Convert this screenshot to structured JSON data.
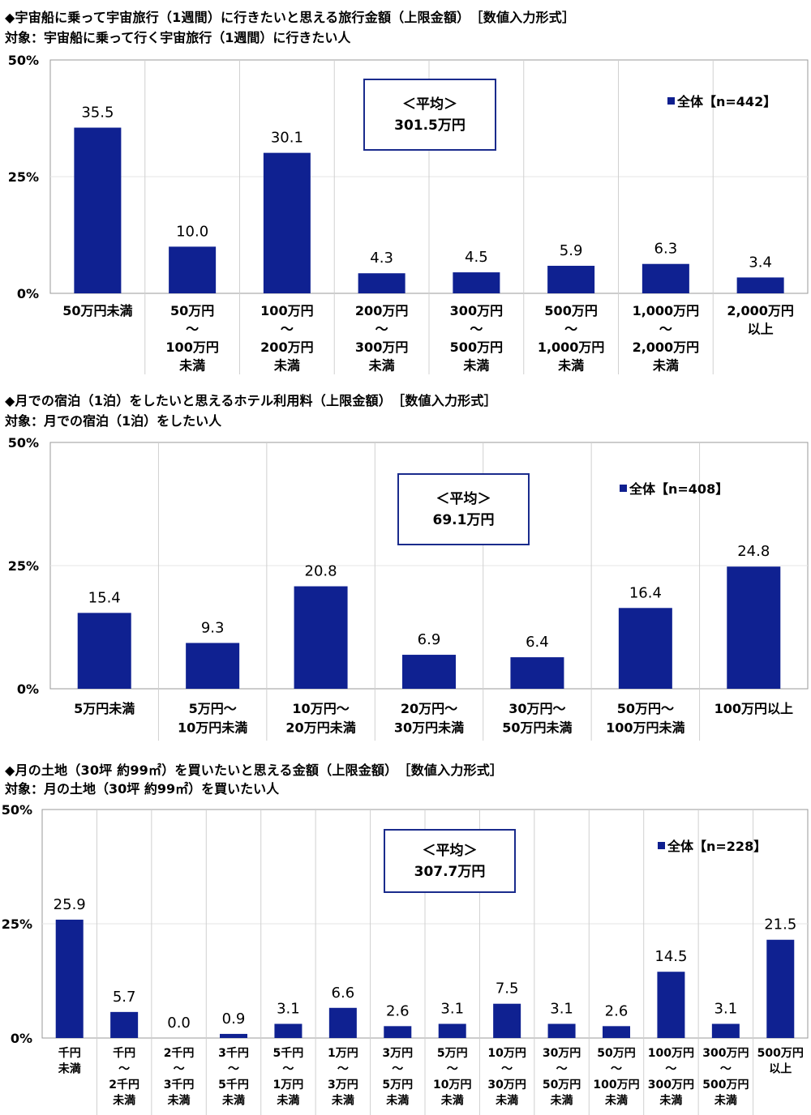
{
  "colors": {
    "bar": "#0f2191",
    "grid": "#d0d0d0",
    "axis": "#999999",
    "box_border": "#1a2b8c"
  },
  "charts": [
    {
      "title": "◆宇宙船に乗って宇宙旅行（1週間）に行きたいと思える旅行金額（上限金額）　［数値入力形式］",
      "subtitle": "対象：宇宙船に乗って行く宇宙旅行（1週間）に行きたい人",
      "avg_label": "＜平均＞",
      "avg_value": "301.5万円",
      "legend": "全体【n=442】"
    },
    {
      "title": "◆月での宿泊（1泊）をしたいと思えるホテル利用料（上限金額）　［数値入力形式］",
      "subtitle": "対象：月での宿泊（1泊）をしたい人",
      "avg_label": "＜平均＞",
      "avg_value": "69.1万円",
      "legend": "全体【n=408】"
    },
    {
      "title": "◆月の土地（30坪 約99㎡）を買いたいと思える金額（上限金額）　［数値入力形式］",
      "subtitle": "対象：月の土地（30坪 約99㎡）を買いたい人",
      "avg_label": "＜平均＞",
      "avg_value": "307.7万円",
      "legend": "全体【n=228】"
    }
  ],
  "chart_data": [
    {
      "type": "bar",
      "y_ticks": [
        "50%",
        "25%",
        "0%"
      ],
      "ylim": [
        0,
        50
      ],
      "categories": [
        [
          "50万円未満"
        ],
        [
          "50万円",
          "～",
          "100万円",
          "未満"
        ],
        [
          "100万円",
          "～",
          "200万円",
          "未満"
        ],
        [
          "200万円",
          "～",
          "300万円",
          "未満"
        ],
        [
          "300万円",
          "～",
          "500万円",
          "未満"
        ],
        [
          "500万円",
          "～",
          "1,000万円",
          "未満"
        ],
        [
          "1,000万円",
          "～",
          "2,000万円",
          "未満"
        ],
        [
          "2,000万円",
          "以上"
        ]
      ],
      "values": [
        35.5,
        10.0,
        30.1,
        4.3,
        4.5,
        5.9,
        6.3,
        3.4
      ],
      "value_labels": [
        "35.5",
        "10.0",
        "30.1",
        "4.3",
        "4.5",
        "5.9",
        "6.3",
        "3.4"
      ],
      "legend_position": "top-right"
    },
    {
      "type": "bar",
      "y_ticks": [
        "50%",
        "25%",
        "0%"
      ],
      "ylim": [
        0,
        50
      ],
      "categories": [
        [
          "5万円未満"
        ],
        [
          "5万円～",
          "10万円未満"
        ],
        [
          "10万円～",
          "20万円未満"
        ],
        [
          "20万円～",
          "30万円未満"
        ],
        [
          "30万円～",
          "50万円未満"
        ],
        [
          "50万円～",
          "100万円未満"
        ],
        [
          "100万円以上"
        ]
      ],
      "values": [
        15.4,
        9.3,
        20.8,
        6.9,
        6.4,
        16.4,
        24.8
      ],
      "value_labels": [
        "15.4",
        "9.3",
        "20.8",
        "6.9",
        "6.4",
        "16.4",
        "24.8"
      ],
      "legend_position": "top-right"
    },
    {
      "type": "bar",
      "y_ticks": [
        "50%",
        "25%",
        "0%"
      ],
      "ylim": [
        0,
        50
      ],
      "categories": [
        [
          "千円",
          "未満"
        ],
        [
          "千円",
          "～",
          "2千円",
          "未満"
        ],
        [
          "2千円",
          "～",
          "3千円",
          "未満"
        ],
        [
          "3千円",
          "～",
          "5千円",
          "未満"
        ],
        [
          "5千円",
          "～",
          "1万円",
          "未満"
        ],
        [
          "1万円",
          "～",
          "3万円",
          "未満"
        ],
        [
          "3万円",
          "～",
          "5万円",
          "未満"
        ],
        [
          "5万円",
          "～",
          "10万円",
          "未満"
        ],
        [
          "10万円",
          "～",
          "30万円",
          "未満"
        ],
        [
          "30万円",
          "～",
          "50万円",
          "未満"
        ],
        [
          "50万円",
          "～",
          "100万円",
          "未満"
        ],
        [
          "100万円",
          "～",
          "300万円",
          "未満"
        ],
        [
          "300万円",
          "～",
          "500万円",
          "未満"
        ],
        [
          "500万円",
          "以上"
        ]
      ],
      "values": [
        25.9,
        5.7,
        0.0,
        0.9,
        3.1,
        6.6,
        2.6,
        3.1,
        7.5,
        3.1,
        2.6,
        14.5,
        3.1,
        21.5
      ],
      "value_labels": [
        "25.9",
        "5.7",
        "0.0",
        "0.9",
        "3.1",
        "6.6",
        "2.6",
        "3.1",
        "7.5",
        "3.1",
        "2.6",
        "14.5",
        "3.1",
        "21.5"
      ],
      "legend_position": "top-right"
    }
  ]
}
